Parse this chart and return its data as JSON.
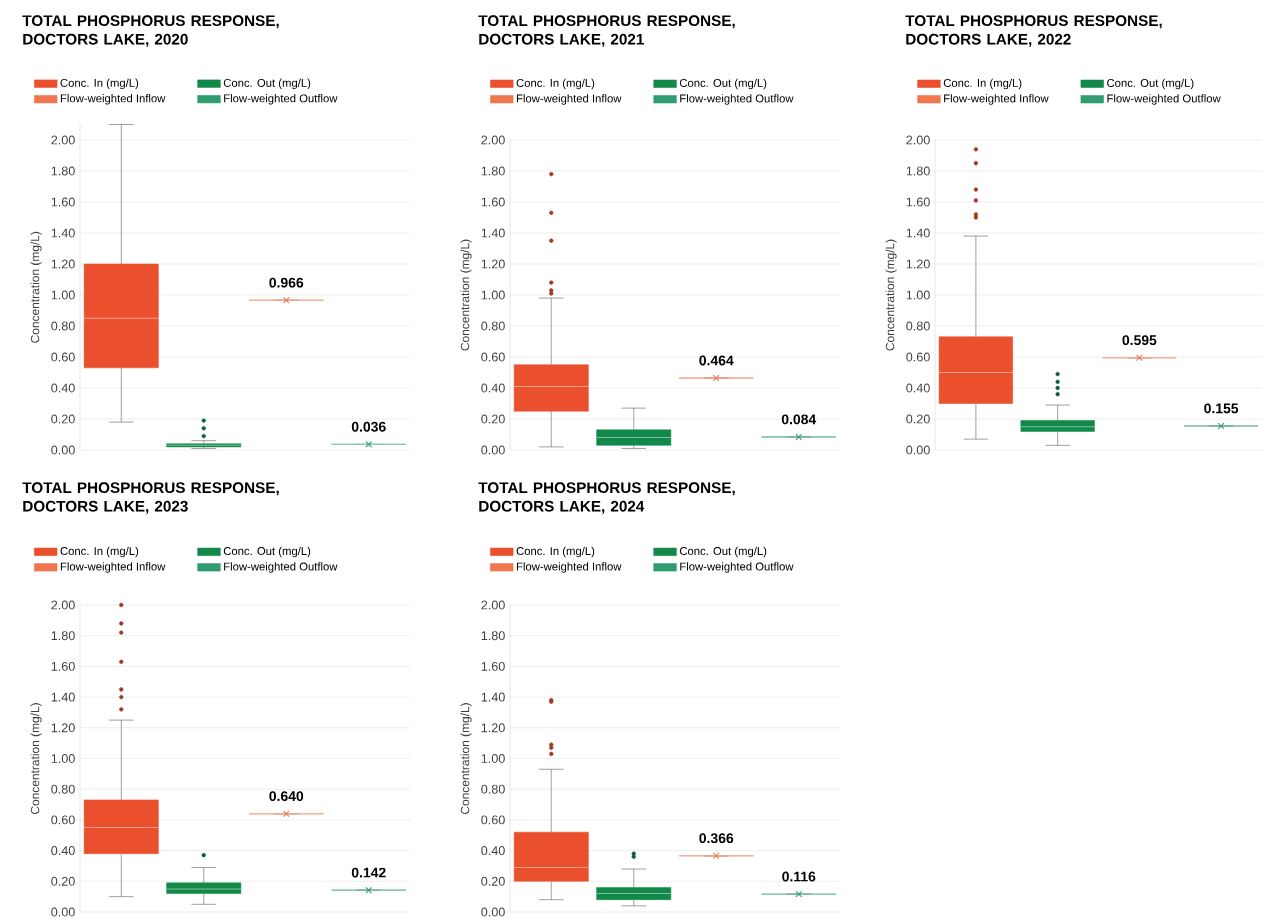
{
  "chart_data": [
    {
      "type": "box",
      "title": "TOTAL PHOSPHORUS RESPONSE, DOCTORS LAKE, 2020",
      "ylabel": "Concentration (mg/L)",
      "categories": [
        null,
        null,
        null,
        null
      ],
      "ylim": [
        0,
        2.1
      ],
      "yticks": [
        {
          "value": 0,
          "label": "0.00"
        },
        {
          "value": 0.2,
          "label": "0.20"
        },
        {
          "value": 0.4,
          "label": "0.40"
        },
        {
          "value": 0.6,
          "label": "0.60"
        },
        {
          "value": 0.8,
          "label": "0.80"
        },
        {
          "value": 1,
          "label": "1.00"
        },
        {
          "value": 1.2,
          "label": "1.20"
        },
        {
          "value": 1.4,
          "label": "1.40"
        },
        {
          "value": 1.6,
          "label": "1.60"
        },
        {
          "value": 1.8,
          "label": "1.80"
        },
        {
          "value": 2,
          "label": "2.00"
        }
      ],
      "grid": "y",
      "legend": "top",
      "series": [
        {
          "name": "Conc. In (mg/L)",
          "color": "#ea4f2e",
          "type": "box",
          "marker": "circle",
          "boxes": [
            {
              "low": 0.18,
              "q1": 0.53,
              "median": 0.85,
              "q3": 1.2,
              "high": 2.1
            },
            null,
            null,
            null
          ]
        },
        {
          "name": "Conc. Out (mg/L)",
          "color": "#12894a",
          "type": "box",
          "marker": "circle",
          "boxes": [
            null,
            {
              "low": 0.01,
              "q1": 0.02,
              "median": 0.03,
              "q3": 0.04,
              "high": 0.06,
              "outliers": [
                0.09,
                0.14,
                0.19
              ]
            },
            null,
            null
          ]
        },
        {
          "name": "Flow-weighted Inflow",
          "color": "#f0764e",
          "type": "box",
          "marker": "cross",
          "value_labels": [
            null,
            null,
            "0.966",
            null
          ],
          "boxes": [
            null,
            null,
            {
              "low": 0.966,
              "q1": 0.966,
              "median": 0.966,
              "q3": 0.966,
              "high": 0.966,
              "mean": 0.966
            },
            null
          ]
        },
        {
          "name": "Flow-weighted Outflow",
          "color": "#2f9c72",
          "type": "box",
          "marker": "cross",
          "value_labels": [
            null,
            null,
            null,
            "0.036"
          ],
          "boxes": [
            null,
            null,
            null,
            {
              "low": 0.036,
              "q1": 0.036,
              "median": 0.036,
              "q3": 0.036,
              "high": 0.036,
              "mean": 0.036
            }
          ]
        }
      ]
    },
    {
      "type": "box",
      "title": "TOTAL PHOSPHORUS RESPONSE, DOCTORS LAKE, 2021",
      "ylabel": "Concentration (mg/L)",
      "categories": [
        null,
        null,
        null,
        null
      ],
      "ylim": [
        0,
        2
      ],
      "yticks": [
        {
          "value": 0,
          "label": "0.00"
        },
        {
          "value": 0.2,
          "label": "0.20"
        },
        {
          "value": 0.4,
          "label": "0.40"
        },
        {
          "value": 0.6,
          "label": "0.60"
        },
        {
          "value": 0.8,
          "label": "0.80"
        },
        {
          "value": 1,
          "label": "1.00"
        },
        {
          "value": 1.2,
          "label": "1.20"
        },
        {
          "value": 1.4,
          "label": "1.40"
        },
        {
          "value": 1.6,
          "label": "1.60"
        },
        {
          "value": 1.8,
          "label": "1.80"
        },
        {
          "value": 2,
          "label": "2.00"
        }
      ],
      "grid": "y",
      "legend": "top",
      "series": [
        {
          "name": "Conc. In (mg/L)",
          "color": "#ea4f2e",
          "type": "box",
          "marker": "circle",
          "boxes": [
            {
              "low": 0.02,
              "q1": 0.25,
              "median": 0.41,
              "q3": 0.55,
              "high": 0.98,
              "outliers": [
                1.01,
                1.03,
                1.08,
                1.35,
                1.53,
                1.78
              ]
            },
            null,
            null,
            null
          ]
        },
        {
          "name": "Conc. Out (mg/L)",
          "color": "#12894a",
          "type": "box",
          "marker": "circle",
          "boxes": [
            null,
            {
              "low": 0.01,
              "q1": 0.03,
              "median": 0.08,
              "q3": 0.13,
              "high": 0.27
            },
            null,
            null
          ]
        },
        {
          "name": "Flow-weighted Inflow",
          "color": "#f0764e",
          "type": "box",
          "marker": "cross",
          "value_labels": [
            null,
            null,
            "0.464",
            null
          ],
          "boxes": [
            null,
            null,
            {
              "low": 0.464,
              "q1": 0.464,
              "median": 0.464,
              "q3": 0.464,
              "high": 0.464,
              "mean": 0.464
            },
            null
          ]
        },
        {
          "name": "Flow-weighted Outflow",
          "color": "#2f9c72",
          "type": "box",
          "marker": "cross",
          "value_labels": [
            null,
            null,
            null,
            "0.084"
          ],
          "boxes": [
            null,
            null,
            null,
            {
              "low": 0.084,
              "q1": 0.084,
              "median": 0.084,
              "q3": 0.084,
              "high": 0.084,
              "mean": 0.084
            }
          ]
        }
      ]
    },
    {
      "type": "box",
      "title": "TOTAL PHOSPHORUS RESPONSE, DOCTORS LAKE, 2022",
      "ylabel": "Concentration (mg/L)",
      "categories": [
        null,
        null,
        null,
        null
      ],
      "ylim": [
        0,
        2
      ],
      "yticks": [
        {
          "value": 0,
          "label": "0.00"
        },
        {
          "value": 0.2,
          "label": "0.20"
        },
        {
          "value": 0.4,
          "label": "0.40"
        },
        {
          "value": 0.6,
          "label": "0.60"
        },
        {
          "value": 0.8,
          "label": "0.80"
        },
        {
          "value": 1,
          "label": "1.00"
        },
        {
          "value": 1.2,
          "label": "1.20"
        },
        {
          "value": 1.4,
          "label": "1.40"
        },
        {
          "value": 1.6,
          "label": "1.60"
        },
        {
          "value": 1.8,
          "label": "1.80"
        },
        {
          "value": 2,
          "label": "2.00"
        }
      ],
      "grid": "y",
      "legend": "top",
      "series": [
        {
          "name": "Conc. In (mg/L)",
          "color": "#ea4f2e",
          "type": "box",
          "marker": "circle",
          "boxes": [
            {
              "low": 0.07,
              "q1": 0.3,
              "median": 0.5,
              "q3": 0.73,
              "high": 1.38,
              "outliers": [
                1.5,
                1.52,
                1.61,
                1.68,
                1.85,
                1.94
              ]
            },
            null,
            null,
            null
          ]
        },
        {
          "name": "Conc. Out (mg/L)",
          "color": "#12894a",
          "type": "box",
          "marker": "circle",
          "boxes": [
            null,
            {
              "low": 0.03,
              "q1": 0.12,
              "median": 0.15,
              "q3": 0.19,
              "high": 0.29,
              "outliers": [
                0.36,
                0.4,
                0.44,
                0.49
              ]
            },
            null,
            null
          ]
        },
        {
          "name": "Flow-weighted Inflow",
          "color": "#f0764e",
          "type": "box",
          "marker": "cross",
          "value_labels": [
            null,
            null,
            "0.595",
            null
          ],
          "boxes": [
            null,
            null,
            {
              "low": 0.595,
              "q1": 0.595,
              "median": 0.595,
              "q3": 0.595,
              "high": 0.595,
              "mean": 0.595
            },
            null
          ]
        },
        {
          "name": "Flow-weighted Outflow",
          "color": "#2f9c72",
          "type": "box",
          "marker": "cross",
          "value_labels": [
            null,
            null,
            null,
            "0.155"
          ],
          "boxes": [
            null,
            null,
            null,
            {
              "low": 0.155,
              "q1": 0.155,
              "median": 0.155,
              "q3": 0.155,
              "high": 0.155,
              "mean": 0.155
            }
          ]
        }
      ]
    },
    {
      "type": "box",
      "title": "TOTAL PHOSPHORUS RESPONSE, DOCTORS LAKE, 2023",
      "ylabel": "Concentration (mg/L)",
      "categories": [
        null,
        null,
        null,
        null
      ],
      "ylim": [
        0,
        2
      ],
      "yticks": [
        {
          "value": 0,
          "label": "0.00"
        },
        {
          "value": 0.2,
          "label": "0.20"
        },
        {
          "value": 0.4,
          "label": "0.40"
        },
        {
          "value": 0.6,
          "label": "0.60"
        },
        {
          "value": 0.8,
          "label": "0.80"
        },
        {
          "value": 1,
          "label": "1.00"
        },
        {
          "value": 1.2,
          "label": "1.20"
        },
        {
          "value": 1.4,
          "label": "1.40"
        },
        {
          "value": 1.6,
          "label": "1.60"
        },
        {
          "value": 1.8,
          "label": "1.80"
        },
        {
          "value": 2,
          "label": "2.00"
        }
      ],
      "grid": "y",
      "legend": "top",
      "series": [
        {
          "name": "Conc. In (mg/L)",
          "color": "#ea4f2e",
          "type": "box",
          "marker": "circle",
          "boxes": [
            {
              "low": 0.1,
              "q1": 0.38,
              "median": 0.55,
              "q3": 0.73,
              "high": 1.25,
              "outliers": [
                1.32,
                1.4,
                1.45,
                1.63,
                1.82,
                1.88,
                2.0
              ]
            },
            null,
            null,
            null
          ]
        },
        {
          "name": "Conc. Out (mg/L)",
          "color": "#12894a",
          "type": "box",
          "marker": "circle",
          "boxes": [
            null,
            {
              "low": 0.05,
              "q1": 0.12,
              "median": 0.15,
              "q3": 0.19,
              "high": 0.29,
              "outliers": [
                0.37
              ]
            },
            null,
            null
          ]
        },
        {
          "name": "Flow-weighted Inflow",
          "color": "#f0764e",
          "type": "box",
          "marker": "cross",
          "value_labels": [
            null,
            null,
            "0.640",
            null
          ],
          "boxes": [
            null,
            null,
            {
              "low": 0.64,
              "q1": 0.64,
              "median": 0.64,
              "q3": 0.64,
              "high": 0.64,
              "mean": 0.64
            },
            null
          ]
        },
        {
          "name": "Flow-weighted Outflow",
          "color": "#2f9c72",
          "type": "box",
          "marker": "cross",
          "value_labels": [
            null,
            null,
            null,
            "0.142"
          ],
          "boxes": [
            null,
            null,
            null,
            {
              "low": 0.142,
              "q1": 0.142,
              "median": 0.142,
              "q3": 0.142,
              "high": 0.142,
              "mean": 0.142
            }
          ]
        }
      ]
    },
    {
      "type": "box",
      "title": "TOTAL PHOSPHORUS RESPONSE, DOCTORS LAKE, 2024",
      "ylabel": "Concentration (mg/L)",
      "categories": [
        null,
        null,
        null,
        null
      ],
      "ylim": [
        0,
        2
      ],
      "yticks": [
        {
          "value": 0,
          "label": "0.00"
        },
        {
          "value": 0.2,
          "label": "0.20"
        },
        {
          "value": 0.4,
          "label": "0.40"
        },
        {
          "value": 0.6,
          "label": "0.60"
        },
        {
          "value": 0.8,
          "label": "0.80"
        },
        {
          "value": 1,
          "label": "1.00"
        },
        {
          "value": 1.2,
          "label": "1.20"
        },
        {
          "value": 1.4,
          "label": "1.40"
        },
        {
          "value": 1.6,
          "label": "1.60"
        },
        {
          "value": 1.8,
          "label": "1.80"
        },
        {
          "value": 2,
          "label": "2.00"
        }
      ],
      "grid": "y",
      "legend": "top",
      "series": [
        {
          "name": "Conc. In (mg/L)",
          "color": "#ea4f2e",
          "type": "box",
          "marker": "circle",
          "boxes": [
            {
              "low": 0.08,
              "q1": 0.2,
              "median": 0.29,
              "q3": 0.52,
              "high": 0.93,
              "outliers": [
                1.03,
                1.07,
                1.09,
                1.37,
                1.38
              ]
            },
            null,
            null,
            null
          ]
        },
        {
          "name": "Conc. Out (mg/L)",
          "color": "#12894a",
          "type": "box",
          "marker": "circle",
          "boxes": [
            null,
            {
              "low": 0.04,
              "q1": 0.08,
              "median": 0.12,
              "q3": 0.16,
              "high": 0.28,
              "outliers": [
                0.36,
                0.38
              ]
            },
            null,
            null
          ]
        },
        {
          "name": "Flow-weighted Inflow",
          "color": "#f0764e",
          "type": "box",
          "marker": "cross",
          "value_labels": [
            null,
            null,
            "0.366",
            null
          ],
          "boxes": [
            null,
            null,
            {
              "low": 0.366,
              "q1": 0.366,
              "median": 0.366,
              "q3": 0.366,
              "high": 0.366,
              "mean": 0.366
            },
            null
          ]
        },
        {
          "name": "Flow-weighted Outflow",
          "color": "#2f9c72",
          "type": "box",
          "marker": "cross",
          "value_labels": [
            null,
            null,
            null,
            "0.116"
          ],
          "boxes": [
            null,
            null,
            null,
            {
              "low": 0.116,
              "q1": 0.116,
              "median": 0.116,
              "q3": 0.116,
              "high": 0.116,
              "mean": 0.116
            }
          ]
        }
      ]
    }
  ]
}
